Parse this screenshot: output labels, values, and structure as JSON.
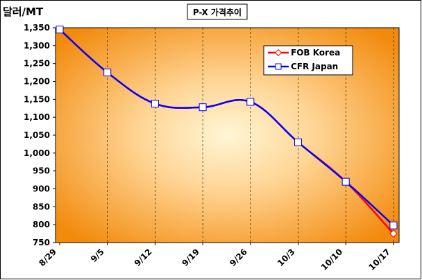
{
  "chart_data": {
    "type": "line",
    "title": "P-X 가격추이",
    "ylabel": "달러/MT",
    "xlabel": "",
    "categories": [
      "8/29",
      "9/5",
      "9/12",
      "9/19",
      "9/26",
      "10/3",
      "10/10",
      "10/17"
    ],
    "ylim": [
      750,
      1350
    ],
    "yticks": [
      "750",
      "800",
      "850",
      "900",
      "950",
      "1,000",
      "1,050",
      "1,100",
      "1,150",
      "1,200",
      "1,250",
      "1,300",
      "1,350"
    ],
    "grid": "vertical dashed lines at categories",
    "legend_position": "top-right",
    "background": "radial gradient pale yellow center to orange edges",
    "series": [
      {
        "name": "FOB Korea",
        "color": "#ff0000",
        "marker": "diamond",
        "values": [
          1345,
          1225,
          1138,
          1128,
          1143,
          1030,
          920,
          775
        ]
      },
      {
        "name": "CFR Japan",
        "color": "#0000ff",
        "marker": "square",
        "values": [
          1345,
          1225,
          1138,
          1128,
          1143,
          1030,
          920,
          798
        ]
      }
    ]
  }
}
